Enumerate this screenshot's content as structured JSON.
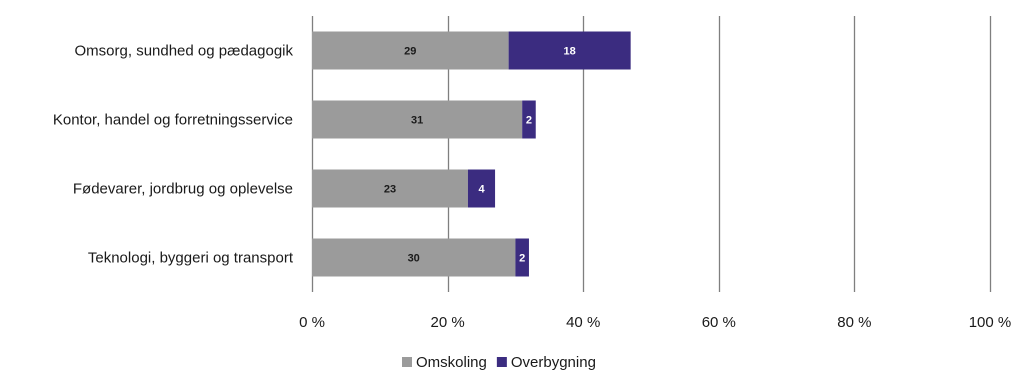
{
  "chart_data": {
    "type": "bar",
    "orientation": "horizontal",
    "stacked": true,
    "title": "",
    "xlabel": "",
    "ylabel": "",
    "categories": [
      "Omsorg, sundhed og pædagogik",
      "Kontor, handel og forretningsservice",
      "Fødevarer, jordbrug og oplevelse",
      "Teknologi, byggeri og transport"
    ],
    "series": [
      {
        "name": "Omskoling",
        "values": [
          29,
          31,
          23,
          30
        ],
        "color": "#9b9b9b",
        "label_color": "#1a1a1a"
      },
      {
        "name": "Overbygning",
        "values": [
          18,
          2,
          4,
          2
        ],
        "color": "#3b2c80",
        "label_color": "#ffffff"
      }
    ],
    "xlim": [
      0,
      100
    ],
    "xticks": [
      0,
      20,
      40,
      60,
      80,
      100
    ],
    "xtick_labels": [
      "0 %",
      "20 %",
      "40 %",
      "60 %",
      "80 %",
      "100 %"
    ],
    "grid": "vertical",
    "gridline_color": "#7f7f7f",
    "legend_position": "bottom"
  }
}
